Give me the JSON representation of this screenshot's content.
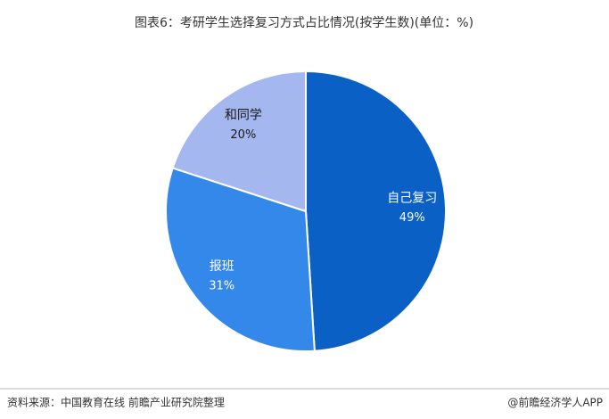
{
  "chart_data": {
    "type": "pie",
    "title": "图表6：考研学生选择复习方式占比情况(按学生数)(单位：%)",
    "categories": [
      "自己复习",
      "报班",
      "和同学"
    ],
    "values": [
      49,
      31,
      20
    ],
    "value_labels": [
      "49%",
      "31%",
      "20%"
    ],
    "colors": [
      "#0b60c6",
      "#3388ea",
      "#a4b7ee"
    ],
    "label_colors": [
      "#ffffff",
      "#ffffff",
      "#1a1a1a"
    ],
    "source": "资料来源：中国教育在线 前瞻产业研究院整理",
    "credit": "@前瞻经济学人APP"
  }
}
